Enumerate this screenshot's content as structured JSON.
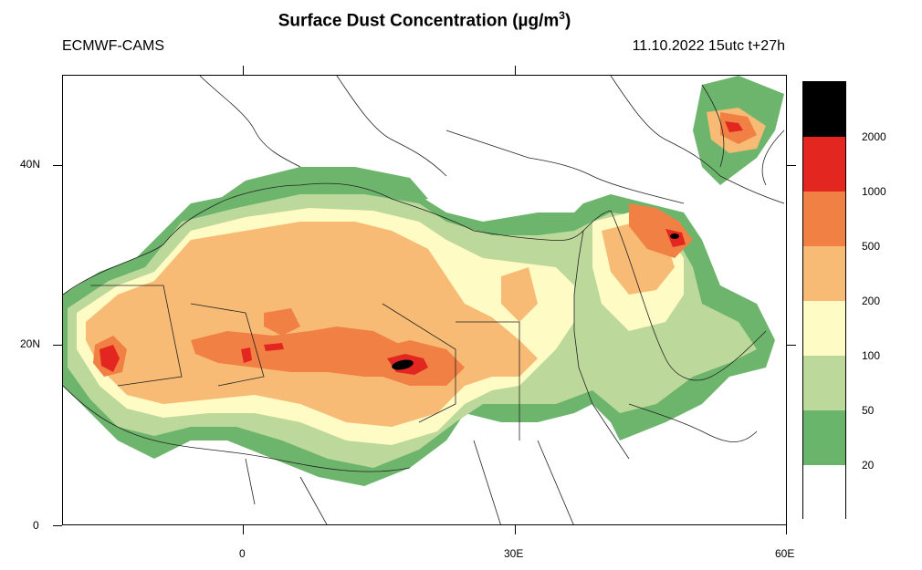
{
  "header": {
    "title": "Surface Dust Concentration (µg/m",
    "title_sup": "3",
    "title_close": ")",
    "model": "ECMWF-CAMS",
    "run": "11.10.2022 15utc t+27h"
  },
  "axes": {
    "lat_labels": [
      "40N",
      "20N",
      "0"
    ],
    "lon_labels": [
      "0",
      "30E",
      "60E"
    ]
  },
  "legend": {
    "levels": [
      "2000",
      "1000",
      "500",
      "200",
      "100",
      "50",
      "20"
    ],
    "colors": [
      "#000000",
      "#e3261f",
      "#f08043",
      "#f7bb76",
      "#fffbc5",
      "#bdd89b",
      "#68b56b",
      "#ffffff"
    ]
  },
  "map_colors": {
    "green": "#6db56c",
    "lightgreen": "#bdd89b",
    "yellow": "#fffbc5",
    "lightorange": "#f7bb76",
    "orange": "#f08043",
    "red": "#e3261f",
    "black": "#000000"
  }
}
